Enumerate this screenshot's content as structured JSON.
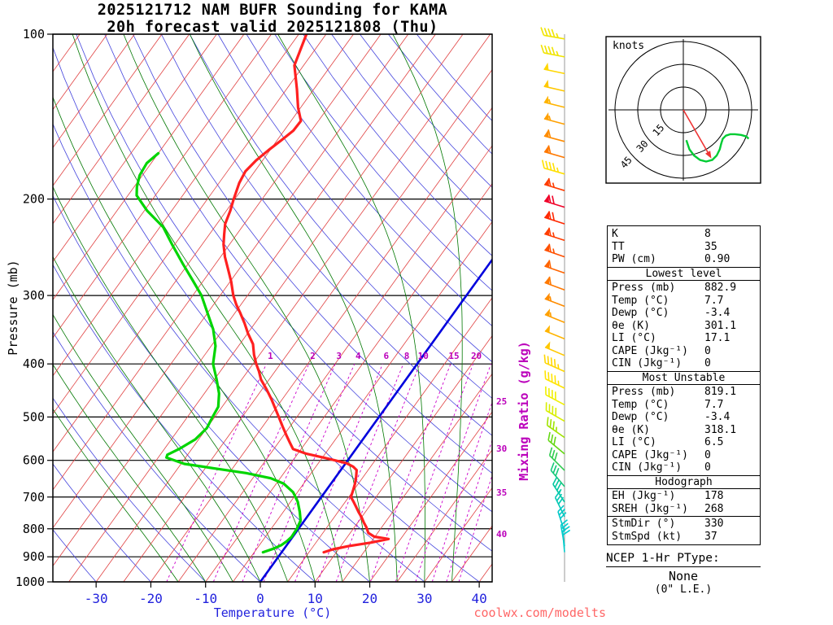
{
  "title": {
    "line1": "2025121712 NAM BUFR Sounding for KAMA",
    "line2": "20h forecast valid 2025121808 (Thu)"
  },
  "watermark": "coolwx.com/modelts",
  "axes": {
    "pressure_label": "Pressure (mb)",
    "temperature_label": "Temperature (°C)",
    "mixing_ratio_label": "Mixing Ratio (g/kg)",
    "pressure_ticks": [
      100,
      200,
      300,
      400,
      500,
      600,
      700,
      800,
      900,
      1000
    ],
    "temperature_ticks": [
      -30,
      -20,
      -10,
      0,
      10,
      20,
      30,
      40
    ]
  },
  "hodograph": {
    "units_label": "knots",
    "rings_kt": [
      15,
      30,
      45
    ],
    "ring_labels": [
      "15",
      "30",
      "45"
    ],
    "storm_motion": {
      "dir_deg": 330,
      "spd_kt": 37
    },
    "trace_uv_kt": [
      [
        2,
        -20
      ],
      [
        4,
        -26
      ],
      [
        7,
        -30
      ],
      [
        11,
        -33
      ],
      [
        15,
        -34
      ],
      [
        19,
        -33
      ],
      [
        22,
        -30
      ],
      [
        24,
        -26
      ],
      [
        25,
        -22
      ],
      [
        26,
        -19
      ],
      [
        28,
        -17
      ],
      [
        31,
        -16
      ],
      [
        34,
        -16
      ],
      [
        38,
        -16.5
      ],
      [
        41.5,
        -17.5
      ],
      [
        43,
        -19
      ]
    ]
  },
  "stats": {
    "top_rows": [
      [
        "K",
        "8"
      ],
      [
        "TT",
        "35"
      ],
      [
        "PW (cm)",
        "0.90"
      ]
    ],
    "sections": [
      {
        "header": "Lowest level",
        "groups": [
          [
            [
              "Press (mb)",
              "882.9"
            ],
            [
              "Temp (°C)",
              "7.7"
            ],
            [
              "Dewp (°C)",
              "-3.4"
            ],
            [
              "θe (K)",
              "301.1"
            ],
            [
              "LI (°C)",
              "17.1"
            ],
            [
              "CAPE (Jkg⁻¹)",
              "0"
            ],
            [
              "CIN (Jkg⁻¹)",
              "0"
            ]
          ]
        ]
      },
      {
        "header": "Most Unstable",
        "groups": [
          [
            [
              "Press (mb)",
              "819.1"
            ],
            [
              "Temp (°C)",
              "7.7"
            ],
            [
              "Dewp (°C)",
              "-3.4"
            ],
            [
              "θe (K)",
              "318.1"
            ],
            [
              "LI (°C)",
              "6.5"
            ],
            [
              "CAPE (Jkg⁻¹)",
              "0"
            ],
            [
              "CIN (Jkg⁻¹)",
              "0"
            ]
          ]
        ]
      },
      {
        "header": "Hodograph",
        "groups": [
          [
            [
              "EH (Jkg⁻¹)",
              "178"
            ],
            [
              "SREH (Jkg⁻¹)",
              "268"
            ]
          ],
          [
            [
              "StmDir (°)",
              "330"
            ],
            [
              "StmSpd (kt)",
              "37"
            ]
          ]
        ]
      }
    ]
  },
  "ptype": {
    "title": "NCEP 1-Hr PType:",
    "value": "None",
    "detail": "(0\" L.E.)"
  },
  "chart_data": {
    "type": "skewt-logp-sounding",
    "station": "KAMA",
    "model": "NAM BUFR",
    "run": "2025121712",
    "forecast_hour": 20,
    "valid": "2025121808 (Thu)",
    "pressure_axis_mb": [
      100,
      1000
    ],
    "temperature_axis_c": [
      -38,
      42
    ],
    "isotherm_step_c": 5,
    "mixing_ratio_lines_gkg": [
      1,
      2,
      3,
      4,
      6,
      8,
      10,
      15,
      20,
      25,
      30,
      35,
      40
    ],
    "temperature_profile_mb_c": [
      [
        100,
        -63.6
      ],
      [
        114,
        -61.7
      ],
      [
        126,
        -58.1
      ],
      [
        136,
        -55.5
      ],
      [
        144,
        -53.2
      ],
      [
        150,
        -53.3
      ],
      [
        156,
        -54.2
      ],
      [
        163,
        -55.3
      ],
      [
        170,
        -56.2
      ],
      [
        178,
        -56.7
      ],
      [
        187,
        -56.3
      ],
      [
        200,
        -55.2
      ],
      [
        210,
        -54.3
      ],
      [
        222,
        -53.5
      ],
      [
        232,
        -52.3
      ],
      [
        242,
        -51.1
      ],
      [
        255,
        -49.2
      ],
      [
        268,
        -47.1
      ],
      [
        283,
        -44.8
      ],
      [
        300,
        -42.6
      ],
      [
        312,
        -40.8
      ],
      [
        323,
        -39.0
      ],
      [
        337,
        -36.9
      ],
      [
        352,
        -34.9
      ],
      [
        368,
        -32.6
      ],
      [
        385,
        -31.0
      ],
      [
        400,
        -29.4
      ],
      [
        413,
        -27.9
      ],
      [
        427,
        -26.5
      ],
      [
        445,
        -24.2
      ],
      [
        463,
        -22.1
      ],
      [
        482,
        -20.1
      ],
      [
        500,
        -18.3
      ],
      [
        520,
        -16.4
      ],
      [
        540,
        -14.5
      ],
      [
        556,
        -13.0
      ],
      [
        572,
        -11.5
      ],
      [
        583,
        -8.6
      ],
      [
        594,
        -4.4
      ],
      [
        607,
        0.1
      ],
      [
        616,
        1.8
      ],
      [
        625,
        2.9
      ],
      [
        643,
        3.7
      ],
      [
        662,
        4.4
      ],
      [
        680,
        4.9
      ],
      [
        700,
        5.4
      ],
      [
        714,
        6.5
      ],
      [
        729,
        7.6
      ],
      [
        746,
        8.8
      ],
      [
        762,
        10.0
      ],
      [
        779,
        11.1
      ],
      [
        795,
        12.2
      ],
      [
        814,
        13.3
      ],
      [
        827,
        14.9
      ],
      [
        835,
        17.8
      ],
      [
        848,
        15.0
      ],
      [
        860,
        11.5
      ],
      [
        872,
        9.0
      ],
      [
        883,
        7.7
      ]
    ],
    "dewpoint_profile_mb_c": [
      [
        165,
        -75.0
      ],
      [
        172,
        -75.8
      ],
      [
        181,
        -75.5
      ],
      [
        190,
        -74.5
      ],
      [
        197,
        -73.4
      ],
      [
        210,
        -69.5
      ],
      [
        225,
        -64.4
      ],
      [
        242,
        -60.5
      ],
      [
        263,
        -55.9
      ],
      [
        282,
        -51.9
      ],
      [
        300,
        -48.4
      ],
      [
        323,
        -45.0
      ],
      [
        346,
        -41.8
      ],
      [
        371,
        -39.2
      ],
      [
        400,
        -37.3
      ],
      [
        427,
        -34.6
      ],
      [
        453,
        -32.3
      ],
      [
        479,
        -30.7
      ],
      [
        500,
        -30.4
      ],
      [
        524,
        -30.0
      ],
      [
        549,
        -30.6
      ],
      [
        572,
        -32.3
      ],
      [
        586,
        -33.7
      ],
      [
        593,
        -33.5
      ],
      [
        609,
        -29.4
      ],
      [
        620,
        -23.6
      ],
      [
        633,
        -16.9
      ],
      [
        647,
        -11.7
      ],
      [
        662,
        -8.6
      ],
      [
        686,
        -5.8
      ],
      [
        714,
        -3.7
      ],
      [
        745,
        -2.0
      ],
      [
        773,
        -0.7
      ],
      [
        800,
        -0.3
      ],
      [
        828,
        -0.2
      ],
      [
        843,
        -0.5
      ],
      [
        857,
        -1.0
      ],
      [
        870,
        -2.0
      ],
      [
        883,
        -3.4
      ]
    ],
    "wind_barbs": [
      {
        "p": 102,
        "spd": 45,
        "dir": 280,
        "color": "#f0e400"
      },
      {
        "p": 110,
        "spd": 45,
        "dir": 281,
        "color": "#f0e400"
      },
      {
        "p": 118,
        "spd": 50,
        "dir": 282,
        "color": "#ffd700"
      },
      {
        "p": 127,
        "spd": 50,
        "dir": 283,
        "color": "#ffc800"
      },
      {
        "p": 136,
        "spd": 55,
        "dir": 284,
        "color": "#ffb400"
      },
      {
        "p": 146,
        "spd": 55,
        "dir": 285,
        "color": "#ffa000"
      },
      {
        "p": 157,
        "spd": 60,
        "dir": 285,
        "color": "#ff8c00"
      },
      {
        "p": 168,
        "spd": 60,
        "dir": 286,
        "color": "#ff7800"
      },
      {
        "p": 180,
        "spd": 45,
        "dir": 286,
        "color": "#ffe000"
      },
      {
        "p": 193,
        "spd": 65,
        "dir": 287,
        "color": "#ff3c00"
      },
      {
        "p": 207,
        "spd": 70,
        "dir": 287,
        "color": "#f00028"
      },
      {
        "p": 222,
        "spd": 70,
        "dir": 288,
        "color": "#ff2800"
      },
      {
        "p": 238,
        "spd": 65,
        "dir": 288,
        "color": "#ff3c00"
      },
      {
        "p": 255,
        "spd": 65,
        "dir": 289,
        "color": "#ff5000"
      },
      {
        "p": 273,
        "spd": 60,
        "dir": 289,
        "color": "#ff6400"
      },
      {
        "p": 293,
        "spd": 60,
        "dir": 290,
        "color": "#ff7800"
      },
      {
        "p": 314,
        "spd": 55,
        "dir": 291,
        "color": "#ff8c00"
      },
      {
        "p": 336,
        "spd": 55,
        "dir": 292,
        "color": "#ffa000"
      },
      {
        "p": 360,
        "spd": 50,
        "dir": 292,
        "color": "#ffb400"
      },
      {
        "p": 386,
        "spd": 50,
        "dir": 293,
        "color": "#ffc800"
      },
      {
        "p": 413,
        "spd": 45,
        "dir": 294,
        "color": "#ffd700"
      },
      {
        "p": 443,
        "spd": 45,
        "dir": 296,
        "color": "#ffe400"
      },
      {
        "p": 475,
        "spd": 40,
        "dir": 298,
        "color": "#f0f000"
      },
      {
        "p": 509,
        "spd": 38,
        "dir": 300,
        "color": "#d8ee00"
      },
      {
        "p": 545,
        "spd": 35,
        "dir": 305,
        "color": "#a0e400"
      },
      {
        "p": 584,
        "spd": 32,
        "dir": 310,
        "color": "#64d814"
      },
      {
        "p": 626,
        "spd": 30,
        "dir": 315,
        "color": "#30cc50"
      },
      {
        "p": 670,
        "spd": 32,
        "dir": 320,
        "color": "#14c878"
      },
      {
        "p": 715,
        "spd": 33,
        "dir": 327,
        "color": "#00c8a0"
      },
      {
        "p": 760,
        "spd": 32,
        "dir": 334,
        "color": "#00c8b4"
      },
      {
        "p": 810,
        "spd": 30,
        "dir": 342,
        "color": "#00c8c8"
      },
      {
        "p": 860,
        "spd": 25,
        "dir": 350,
        "color": "#00cccc"
      },
      {
        "p": 883,
        "spd": 20,
        "dir": 355,
        "color": "#00cccc"
      }
    ],
    "indices": {
      "K": 8,
      "TT": 35,
      "PW_cm": 0.9
    },
    "lowest_level_parcel": {
      "press_mb": 882.9,
      "temp_c": 7.7,
      "dewp_c": -3.4,
      "theta_e_k": 301.1,
      "li_c": 17.1,
      "cape_jkg": 0,
      "cin_jkg": 0
    },
    "most_unstable_parcel": {
      "press_mb": 819.1,
      "temp_c": 7.7,
      "dewp_c": -3.4,
      "theta_e_k": 318.1,
      "li_c": 6.5,
      "cape_jkg": 0,
      "cin_jkg": 0
    },
    "hodograph_params": {
      "EH_jkg": 178,
      "SREH_jkg": 268,
      "StmDir_deg": 330,
      "StmSpd_kt": 37
    },
    "precip_type": {
      "scheme": "NCEP 1-Hr PType",
      "value": "None",
      "liquid_equiv_in": 0
    }
  }
}
